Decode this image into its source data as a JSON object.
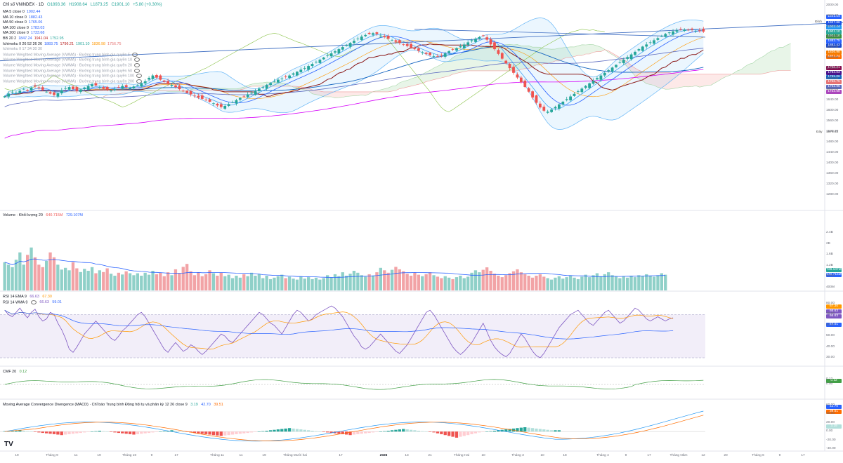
{
  "header": {
    "symbol": "Chỉ số VNINDEX · 1D",
    "open": "O1893.36",
    "high": "H1908.64",
    "low": "L1873.25",
    "close": "C1901.10",
    "change": "+5.80 (+0.30%)"
  },
  "indicators": [
    {
      "name": "MA 5 close 0",
      "values": [
        "1902.44"
      ]
    },
    {
      "name": "MA 10 close 0",
      "values": [
        "1882.43"
      ]
    },
    {
      "name": "MA 50 close 0",
      "values": [
        "1765.06"
      ]
    },
    {
      "name": "MA 100 close 0",
      "values": [
        "1783.03"
      ]
    },
    {
      "name": "MA 200 close 0",
      "values": [
        "1733.68"
      ]
    },
    {
      "name": "BB 20 2",
      "values": [
        "1847.24",
        "1941.04",
        "1752.95"
      ]
    },
    {
      "name": "Ichimoku II 26 52 26 26",
      "values": [
        "1883.75",
        "1796.21",
        "1901.10",
        "1836.98",
        "1756.75"
      ]
    },
    {
      "name": "Ichimoku II 17 34 30 30",
      "values": []
    },
    {
      "name": "Volume Weighted Moving Average (VWMA) · Đường trung bình gia quyền 5",
      "values": []
    },
    {
      "name": "Volume Weighted Moving Average (VWMA) · Đường trung bình gia quyền 10",
      "values": []
    },
    {
      "name": "Volume Weighted Moving Average (VWMA) · Đường trung bình gia quyền 20",
      "values": []
    },
    {
      "name": "Volume Weighted Moving Average (VWMA) · Đường trung bình gia quyền 50",
      "values": []
    },
    {
      "name": "Volume Weighted Moving Average (VWMA) · Đường trung bình gia quyền 100",
      "values": []
    },
    {
      "name": "Volume Weighted Moving Average (VWMA) · Đường trung bình gia quyền 200",
      "values": []
    }
  ],
  "price_tags": [
    {
      "label": "1941.04",
      "color": "#2962ff"
    },
    {
      "label": "1927.66",
      "color": "#1e53e5"
    },
    {
      "label": "1902.44",
      "color": "#2196f3"
    },
    {
      "label": "1901.10",
      "color": "#26a69a"
    },
    {
      "label": "1901.10",
      "color": "#388e3c"
    },
    {
      "label": "1883.75",
      "color": "#2962ff"
    },
    {
      "label": "1882.43",
      "color": "#1848cc"
    },
    {
      "label": "1836.98",
      "color": "#f57c00"
    },
    {
      "label": "1847.24",
      "color": "#ff6d00"
    },
    {
      "label": "1796.21",
      "color": "#880e4f"
    },
    {
      "label": "1783.03",
      "color": "#4a148c"
    },
    {
      "label": "1765.06",
      "color": "#1565c0"
    },
    {
      "label": "1756.75",
      "color": "#e57373"
    },
    {
      "label": "1752.95",
      "color": "#5c6bc0"
    },
    {
      "label": "1733.68",
      "color": "#ab47bc"
    }
  ],
  "price_tag_notes": {
    "dinh": "Đỉnh",
    "day": "Đáy",
    "day_value": "1576.42"
  },
  "panes": {
    "volume": {
      "title": "Volume · Khối lượng 20",
      "values": [
        "640.715M",
        "729.107M"
      ],
      "tags": [
        "729.107M",
        "640.715M"
      ]
    },
    "rsi": {
      "title": "RSI 14 EMA 9",
      "values": [
        "66.63",
        "67.30"
      ],
      "tags": [
        "67.30",
        "66.63",
        "66.63"
      ]
    },
    "rsi2": {
      "title": "RSI 14 WMA 9",
      "values": [
        "66.63",
        "59.01"
      ],
      "tags": [
        "59.01"
      ]
    },
    "cmf": {
      "title": "CMF 20",
      "values": [
        "0.12"
      ],
      "tags": [
        "0.12"
      ]
    },
    "macd": {
      "title": "Moving Average Convergence Divergence (MACD) · Chỉ báo Trung bình Động hội tụ và phân kỳ 12 26 close 9",
      "values": [
        "3.19",
        "42.70",
        "39.51"
      ],
      "tags": [
        "42.70",
        "39.51",
        "3.19"
      ]
    }
  },
  "branding": {
    "logo": "TV"
  },
  "colors": {
    "up": "#26a69a",
    "down": "#ef5350",
    "upVol": "#8fd0c8",
    "downVol": "#f2a3a6"
  },
  "chart_data": [
    {
      "type": "candlestick",
      "title": "Chỉ số VNINDEX · 1D",
      "ylim": [
        1220,
        2000
      ],
      "ticks": [
        1280,
        1320,
        1360,
        1400,
        1440,
        1480,
        1520,
        1560,
        1600,
        1640,
        1680,
        1720,
        1760,
        1800,
        1840,
        1880,
        1920,
        1960,
        2000
      ],
      "x_labels": [
        "19",
        "Tháng 9",
        "11",
        "19",
        "Tháng 10",
        "9",
        "17",
        "Tháng 11",
        "11",
        "19",
        "Tháng Mười hai",
        "17",
        "2026",
        "13",
        "21",
        "Tháng Hai",
        "10",
        "Tháng 3",
        "10",
        "18",
        "Tháng 4",
        "9",
        "17",
        "Tháng Năm",
        "12",
        "20",
        "Tháng 6",
        "9",
        "17"
      ],
      "bold_x_labels": [
        "2026"
      ],
      "close": [
        1655,
        1665,
        1672,
        1668,
        1676,
        1683,
        1675,
        1688,
        1692,
        1686,
        1680,
        1672,
        1665,
        1660,
        1666,
        1678,
        1685,
        1690,
        1682,
        1675,
        1680,
        1688,
        1694,
        1700,
        1696,
        1690,
        1684,
        1680,
        1676,
        1682,
        1688,
        1694,
        1690,
        1686,
        1692,
        1698,
        1704,
        1712,
        1725,
        1734,
        1726,
        1718,
        1710,
        1702,
        1698,
        1690,
        1682,
        1675,
        1668,
        1662,
        1655,
        1650,
        1645,
        1640,
        1634,
        1628,
        1620,
        1614,
        1618,
        1625,
        1632,
        1640,
        1648,
        1655,
        1662,
        1668,
        1676,
        1684,
        1690,
        1698,
        1705,
        1712,
        1718,
        1722,
        1728,
        1734,
        1742,
        1748,
        1756,
        1762,
        1770,
        1778,
        1786,
        1794,
        1802,
        1810,
        1818,
        1826,
        1834,
        1842,
        1850,
        1858,
        1866,
        1874,
        1882,
        1888,
        1892,
        1895,
        1892,
        1886,
        1880,
        1874,
        1868,
        1862,
        1858,
        1852,
        1846,
        1840,
        1834,
        1828,
        1822,
        1816,
        1812,
        1808,
        1806,
        1810,
        1818,
        1826,
        1832,
        1838,
        1845,
        1852,
        1860,
        1868,
        1874,
        1880,
        1884,
        1870,
        1852,
        1834,
        1816,
        1798,
        1780,
        1762,
        1744,
        1726,
        1708,
        1690,
        1672,
        1650,
        1630,
        1612,
        1600,
        1596,
        1604,
        1614,
        1624,
        1634,
        1644,
        1654,
        1664,
        1674,
        1684,
        1694,
        1704,
        1714,
        1724,
        1734,
        1744,
        1754,
        1764,
        1774,
        1784,
        1794,
        1804,
        1814,
        1824,
        1834,
        1844,
        1852,
        1860,
        1868,
        1876,
        1884,
        1892,
        1898,
        1902,
        1906,
        1910,
        1908,
        1906,
        1908,
        1904,
        1903,
        1901
      ],
      "series": [
        {
          "name": "MA 5 close 0",
          "last": 1902.44
        },
        {
          "name": "MA 10 close 0",
          "last": 1882.43
        },
        {
          "name": "MA 50 close 0",
          "last": 1765.06
        },
        {
          "name": "MA 100 close 0",
          "last": 1783.03
        },
        {
          "name": "MA 200 close 0",
          "last": 1733.68
        },
        {
          "name": "BB 20 2",
          "basis": 1847.24,
          "upper": 1941.04,
          "lower": 1752.95
        }
      ]
    },
    {
      "type": "bar",
      "title": "Volume · Khối lượng 20",
      "ylim": [
        0,
        2.4
      ],
      "ticks": [
        "2.4B",
        "2B",
        "1.6B",
        "1.2B",
        "800M",
        "400M"
      ],
      "values": [
        1.15,
        1.05,
        0.95,
        1.25,
        1.55,
        1.05,
        1.45,
        1.75,
        1.35,
        1.05,
        0.95,
        1.2,
        1.55,
        1.35,
        1.05,
        0.85,
        0.92,
        0.82,
        1.15,
        0.9,
        0.75,
        0.88,
        0.8,
        0.95,
        0.7,
        0.82,
        0.75,
        0.9,
        0.68,
        0.6,
        0.72,
        0.65,
        0.78,
        0.7,
        0.62,
        0.7,
        0.6,
        0.72,
        0.64,
        0.8,
        0.66,
        0.72,
        0.58,
        0.74,
        0.62,
        0.86,
        0.7,
        0.96,
        1.08,
        0.78,
        0.62,
        0.74,
        0.58,
        0.66,
        0.82,
        0.7,
        0.6,
        0.72,
        0.58,
        0.64,
        0.5,
        0.6,
        0.52,
        0.66,
        0.58,
        0.72,
        0.6,
        0.66,
        0.5,
        0.6,
        0.46,
        0.52,
        0.58,
        0.64,
        0.5,
        0.56,
        0.48,
        0.44,
        0.56,
        0.48,
        0.54,
        0.46,
        0.52,
        0.44,
        0.5,
        0.62,
        0.54,
        0.66,
        0.58,
        0.74,
        0.6,
        0.68,
        0.8,
        0.72,
        0.62,
        0.56,
        0.66,
        0.6,
        0.74,
        0.92,
        0.82,
        0.72,
        0.84,
        0.96,
        0.86,
        0.78,
        0.68,
        0.6,
        0.72,
        0.64,
        0.58,
        0.66,
        0.74,
        0.62,
        0.56,
        0.5,
        0.58,
        0.52,
        0.46,
        0.54,
        0.6,
        0.5,
        0.56,
        0.72,
        0.82,
        0.74,
        0.84,
        0.94,
        0.8,
        0.68,
        0.6,
        0.54,
        0.62,
        0.7,
        0.78,
        0.86,
        0.74,
        0.66,
        0.6,
        0.52,
        0.6,
        0.66,
        0.56,
        0.5,
        0.44,
        0.52,
        0.58,
        0.48,
        0.54,
        0.6,
        0.52,
        0.46,
        0.56,
        0.64,
        0.54,
        0.62,
        0.7,
        0.58,
        0.66,
        0.74,
        0.62,
        0.58,
        0.5,
        0.58,
        0.52,
        0.6,
        0.54,
        0.62,
        0.58,
        0.66,
        0.6,
        0.56,
        0.62,
        0.7,
        0.64
      ],
      "ma_last": "640.715M"
    },
    {
      "type": "line",
      "title": "RSI 14 EMA 9",
      "ylim": [
        30,
        80
      ],
      "ticks": [
        "80.00",
        "70.00",
        "60.00",
        "50.00",
        "40.00",
        "30.00"
      ],
      "series": [
        {
          "name": "RSI 14",
          "values": [
            74,
            70,
            68,
            72,
            76,
            71,
            67,
            72,
            75,
            68,
            64,
            66,
            72,
            70,
            62,
            56,
            48,
            38,
            35,
            40,
            46,
            52,
            56,
            60,
            64,
            60,
            56,
            52,
            48,
            46,
            50,
            55,
            58,
            62,
            66,
            70,
            72,
            68,
            62,
            56,
            50,
            44,
            38,
            35,
            40,
            44,
            40,
            36,
            38,
            42,
            40,
            36,
            33,
            36,
            40,
            44,
            48,
            52,
            50,
            46,
            44,
            48,
            52,
            56,
            60,
            64,
            68,
            72,
            70,
            66,
            62,
            60,
            56,
            52,
            58,
            64,
            70,
            74,
            72,
            68,
            64,
            66,
            70,
            72,
            74,
            76,
            78,
            76,
            72,
            68,
            62,
            56,
            50,
            46,
            40,
            38,
            40,
            44,
            48,
            52,
            48,
            44,
            40,
            36,
            34,
            38,
            42,
            48,
            54,
            60,
            66,
            72,
            74,
            70,
            64,
            58,
            52,
            46,
            40,
            36,
            33,
            36,
            40,
            44,
            50,
            56,
            62,
            54,
            46,
            40,
            36,
            33,
            31,
            34,
            40,
            46,
            52,
            48,
            42,
            36,
            32,
            30,
            34,
            40,
            46,
            52,
            58,
            62,
            66,
            70,
            72,
            74,
            70,
            66,
            62,
            60,
            64,
            68,
            72,
            74,
            70,
            66,
            62,
            64,
            68,
            72,
            76,
            74,
            70,
            66,
            64,
            66,
            68,
            66,
            64,
            66,
            67
          ]
        },
        {
          "name": "EMA 9",
          "last": 67.3
        },
        {
          "name": "WMA 9",
          "last": 59.01
        }
      ]
    },
    {
      "type": "line",
      "title": "CMF 20",
      "ylim": [
        -0.3,
        0.3
      ],
      "ticks": [
        "0.12",
        "0.00"
      ],
      "series": [
        {
          "name": "CMF 20",
          "last": 0.12
        }
      ]
    },
    {
      "type": "bar",
      "title": "Moving Average Convergence Divergence (MACD) · Chỉ báo Trung bình Động hội tụ và phân kỳ 12 26 close 9",
      "ylim": [
        -40,
        60
      ],
      "ticks": [
        "60.00",
        "40.00",
        "20.00",
        "0.00",
        "-20.00",
        "-40.00"
      ],
      "values": [
        1,
        1,
        2,
        2,
        3,
        2,
        1,
        0,
        -1,
        -2,
        -3,
        -4,
        -5,
        -6,
        -7,
        -8,
        -7,
        -6,
        -5,
        -4,
        -3,
        -2,
        -1,
        0,
        1,
        2,
        1,
        0,
        -1,
        -2,
        -3,
        -4,
        -5,
        -6,
        -7,
        -6,
        -5,
        -4,
        -3,
        -2,
        -1,
        0,
        1,
        2,
        3,
        2,
        1,
        0,
        -1,
        -2,
        -3,
        -4,
        -5,
        -6,
        -7,
        -8,
        -9,
        -10,
        -9,
        -8,
        -7,
        -6,
        -5,
        -4,
        -3,
        -2,
        -1,
        0,
        1,
        2,
        3,
        4,
        5,
        6,
        7,
        8,
        7,
        6,
        5,
        4,
        3,
        2,
        1,
        0,
        -1,
        -2,
        -3,
        -4,
        -5,
        -6,
        -7,
        -8,
        -7,
        -6,
        -5,
        -4,
        -3,
        -2,
        -1,
        0,
        1,
        2,
        3,
        4,
        5,
        6,
        5,
        4,
        3,
        2,
        1,
        0,
        -1,
        -2,
        -4,
        -6,
        -8,
        -10,
        -12,
        -14,
        -12,
        -10,
        -8,
        -6,
        -4,
        -2,
        -1,
        0,
        1,
        2,
        3,
        4,
        5,
        6,
        7,
        8,
        9,
        10,
        9,
        8,
        7,
        6,
        5,
        4,
        3,
        3,
        3
      ],
      "series": [
        {
          "name": "MACD",
          "last": 42.7
        },
        {
          "name": "Signal",
          "last": 39.51
        },
        {
          "name": "Histogram",
          "last": 3.19
        }
      ]
    }
  ]
}
